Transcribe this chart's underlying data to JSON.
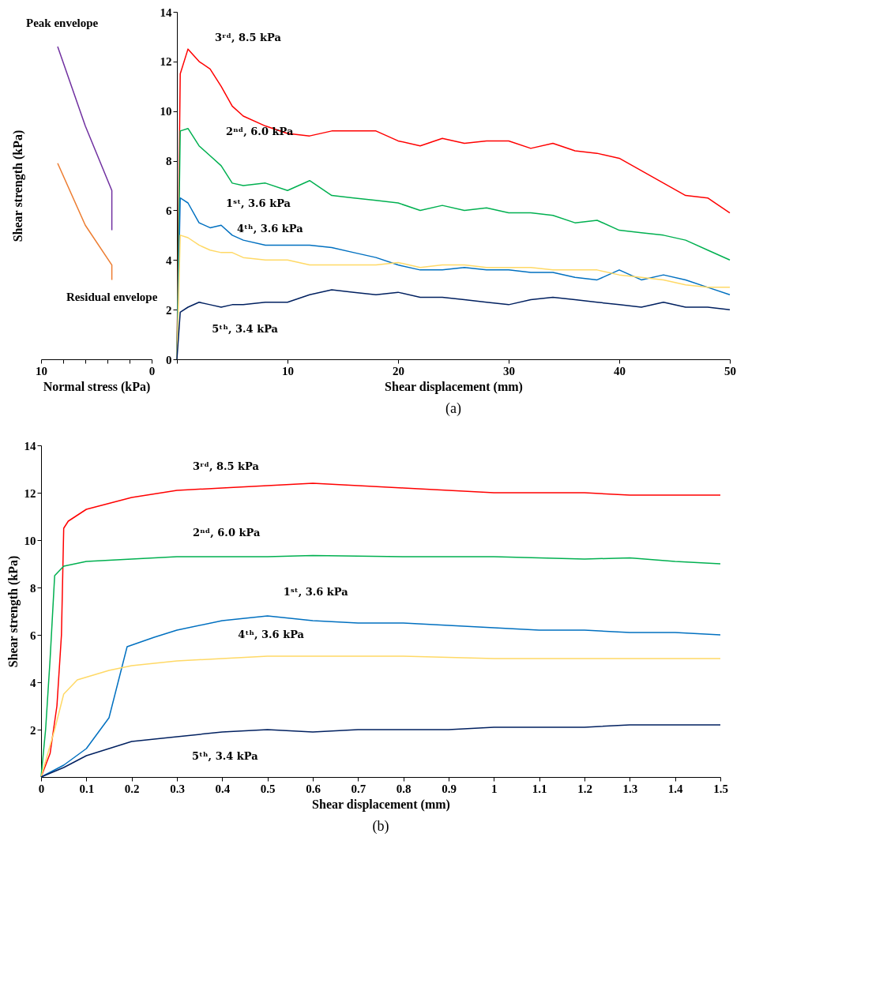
{
  "chart_data": [
    {
      "type": "line",
      "xlabel": "Normal stress (kPa)",
      "ylabel": "Shear strength (kPa)",
      "xlim": [
        10,
        0
      ],
      "xticks": [
        10,
        {
          "value": 8,
          "label": null
        },
        {
          "value": 6,
          "label": null
        },
        {
          "value": 4,
          "label": null
        },
        {
          "value": 2,
          "label": null
        },
        0
      ],
      "ylim": [
        0,
        14
      ],
      "yticks": [
        0,
        2,
        4,
        6,
        8,
        10,
        12,
        14
      ],
      "tick_labels": "x",
      "grid": false,
      "legend": false,
      "series": [
        {
          "name": "Peak envelope",
          "color": "#7030a0",
          "x": [
            8.5,
            6.0,
            3.6,
            3.6
          ],
          "values": [
            12.6,
            9.4,
            6.8,
            5.2
          ]
        },
        {
          "name": "Residual envelope",
          "color": "#ed7d31",
          "x": [
            8.5,
            6.0,
            3.6,
            3.6
          ],
          "values": [
            7.9,
            5.4,
            3.8,
            3.2
          ]
        }
      ]
    },
    {
      "type": "line",
      "xlabel": "Shear displacement (mm)",
      "xlim": [
        0,
        50
      ],
      "xticks": [
        {
          "value": 0,
          "label": null
        },
        10,
        20,
        30,
        40,
        50
      ],
      "ylim": [
        0,
        14
      ],
      "yticks": [
        0,
        2,
        4,
        6,
        8,
        10,
        12,
        14
      ],
      "grid": false,
      "legend": false,
      "x": [
        0,
        0.3,
        1,
        2,
        3,
        4,
        5,
        6,
        8,
        10,
        12,
        14,
        16,
        18,
        20,
        22,
        24,
        26,
        28,
        30,
        32,
        34,
        36,
        38,
        40,
        42,
        44,
        46,
        48,
        50
      ],
      "series": [
        {
          "color": "#ff0000",
          "values": [
            0,
            11.5,
            12.5,
            12,
            11.7,
            11,
            10.2,
            9.8,
            9.4,
            9.1,
            9,
            9.2,
            9.2,
            9.2,
            8.8,
            8.6,
            8.9,
            8.7,
            8.8,
            8.8,
            8.5,
            8.7,
            8.4,
            8.3,
            8.1,
            7.6,
            7.1,
            6.6,
            6.5,
            5.9
          ]
        },
        {
          "color": "#00b050",
          "values": [
            0,
            9.2,
            9.3,
            8.6,
            8.2,
            7.8,
            7.1,
            7,
            7.1,
            6.8,
            7.2,
            6.6,
            6.5,
            6.4,
            6.3,
            6,
            6.2,
            6,
            6.1,
            5.9,
            5.9,
            5.8,
            5.5,
            5.6,
            5.2,
            5.1,
            5,
            4.8,
            4.4,
            4
          ]
        },
        {
          "color": "#0070c0",
          "values": [
            0,
            6.5,
            6.3,
            5.5,
            5.3,
            5.4,
            5,
            4.8,
            4.6,
            4.6,
            4.6,
            4.5,
            4.3,
            4.1,
            3.8,
            3.6,
            3.6,
            3.7,
            3.6,
            3.6,
            3.5,
            3.5,
            3.3,
            3.2,
            3.6,
            3.2,
            3.4,
            3.2,
            2.9,
            2.6
          ]
        },
        {
          "color": "#ffd966",
          "values": [
            0,
            5,
            4.9,
            4.6,
            4.4,
            4.3,
            4.3,
            4.1,
            4,
            4,
            3.8,
            3.8,
            3.8,
            3.8,
            3.9,
            3.7,
            3.8,
            3.8,
            3.7,
            3.7,
            3.7,
            3.6,
            3.6,
            3.6,
            3.4,
            3.3,
            3.2,
            3,
            2.9,
            2.9
          ]
        },
        {
          "color": "#002060",
          "values": [
            0,
            1.9,
            2.1,
            2.3,
            2.2,
            2.1,
            2.2,
            2.2,
            2.3,
            2.3,
            2.6,
            2.8,
            2.7,
            2.6,
            2.7,
            2.5,
            2.5,
            2.4,
            2.3,
            2.2,
            2.4,
            2.5,
            2.4,
            2.3,
            2.2,
            2.1,
            2.3,
            2.1,
            2.1,
            2
          ]
        }
      ],
      "annotations": [
        {
          "text": "3ʳᵈ, 8.5 kPa",
          "x": 2,
          "y": 12
        },
        {
          "text": "2ⁿᵈ, 6.0 kPa",
          "x": 3,
          "y": 8.2
        },
        {
          "text": "1ˢᵗ, 3.6 kPa",
          "x": 3,
          "y": 5.3
        },
        {
          "text": "4ᵗʰ, 3.6 kPa",
          "x": 4,
          "y": 4.3
        },
        {
          "text": "5ᵗʰ, 3.4 kPa",
          "x": 10,
          "y": 2.3
        },
        "(a)"
      ]
    },
    {
      "type": "line",
      "xlabel": "Shear displacement (mm)",
      "ylabel": "Shear strength (kPa)",
      "xlim": [
        0,
        1.5
      ],
      "xticks": [
        0,
        0.1,
        0.2,
        0.3,
        0.4,
        0.5,
        0.6,
        0.7,
        0.8,
        0.9,
        1,
        1.1,
        1.2,
        1.3,
        1.4,
        1.5
      ],
      "ylim": [
        0,
        14
      ],
      "yticks": [
        2,
        4,
        6,
        8,
        10,
        12,
        14
      ],
      "grid": false,
      "legend": false,
      "series": [
        {
          "color": "#ff0000",
          "x": [
            0,
            0.02,
            0.035,
            0.045,
            0.05,
            0.06,
            0.1,
            0.2,
            0.3,
            0.4,
            0.5,
            0.6,
            0.7,
            0.8,
            0.9,
            1.0,
            1.1,
            1.2,
            1.3,
            1.4,
            1.5
          ],
          "values": [
            0,
            1,
            3,
            6,
            10.5,
            10.8,
            11.3,
            11.8,
            12.1,
            12.2,
            12.3,
            12.4,
            12.3,
            12.2,
            12.1,
            12.0,
            12.0,
            12.0,
            11.9,
            11.9,
            11.9
          ]
        },
        {
          "color": "#00b050",
          "x": [
            0,
            0.01,
            0.02,
            0.03,
            0.05,
            0.1,
            0.2,
            0.3,
            0.4,
            0.5,
            0.6,
            0.8,
            1.0,
            1.2,
            1.3,
            1.4,
            1.5
          ],
          "values": [
            0,
            2,
            5,
            8.5,
            8.9,
            9.1,
            9.2,
            9.3,
            9.3,
            9.3,
            9.35,
            9.3,
            9.3,
            9.2,
            9.25,
            9.1,
            9.0
          ]
        },
        {
          "color": "#0070c0",
          "x": [
            0,
            0.05,
            0.1,
            0.15,
            0.17,
            0.19,
            0.25,
            0.3,
            0.4,
            0.5,
            0.6,
            0.7,
            0.8,
            0.9,
            1.0,
            1.1,
            1.2,
            1.3,
            1.4,
            1.5
          ],
          "values": [
            0,
            0.5,
            1.2,
            2.5,
            4,
            5.5,
            5.9,
            6.2,
            6.6,
            6.8,
            6.6,
            6.5,
            6.5,
            6.4,
            6.3,
            6.2,
            6.2,
            6.1,
            6.1,
            6.0
          ]
        },
        {
          "color": "#ffd966",
          "x": [
            0,
            0.03,
            0.05,
            0.08,
            0.15,
            0.2,
            0.3,
            0.4,
            0.5,
            0.6,
            0.7,
            0.8,
            0.9,
            1.0,
            1.2,
            1.4,
            1.5
          ],
          "values": [
            0,
            2,
            3.5,
            4.1,
            4.5,
            4.7,
            4.9,
            5.0,
            5.1,
            5.1,
            5.1,
            5.1,
            5.05,
            5.0,
            5.0,
            5.0,
            5.0
          ]
        },
        {
          "color": "#002060",
          "x": [
            0,
            0.05,
            0.1,
            0.15,
            0.2,
            0.3,
            0.4,
            0.5,
            0.6,
            0.7,
            0.8,
            0.9,
            1.0,
            1.1,
            1.2,
            1.3,
            1.4,
            1.5
          ],
          "values": [
            0,
            0.4,
            0.9,
            1.2,
            1.5,
            1.7,
            1.9,
            2.0,
            1.9,
            2.0,
            2.0,
            2.0,
            2.1,
            2.1,
            2.1,
            2.2,
            2.2,
            2.2
          ]
        }
      ],
      "annotations": [
        {
          "text": "3ʳᵈ, 8.5 kPa",
          "x": 0.3,
          "y": 12.1
        },
        {
          "text": "2ⁿᵈ, 6.0 kPa",
          "x": 0.3,
          "y": 9.3
        },
        {
          "text": "1ˢᵗ, 3.6 kPa",
          "x": 0.5,
          "y": 6.8
        },
        {
          "text": "4ᵗʰ, 3.6 kPa",
          "x": 0.4,
          "y": 5.0
        },
        {
          "text": "5ᵗʰ, 3.4 kPa",
          "x": 0.5,
          "y": 2.0
        },
        "(b)"
      ]
    }
  ]
}
